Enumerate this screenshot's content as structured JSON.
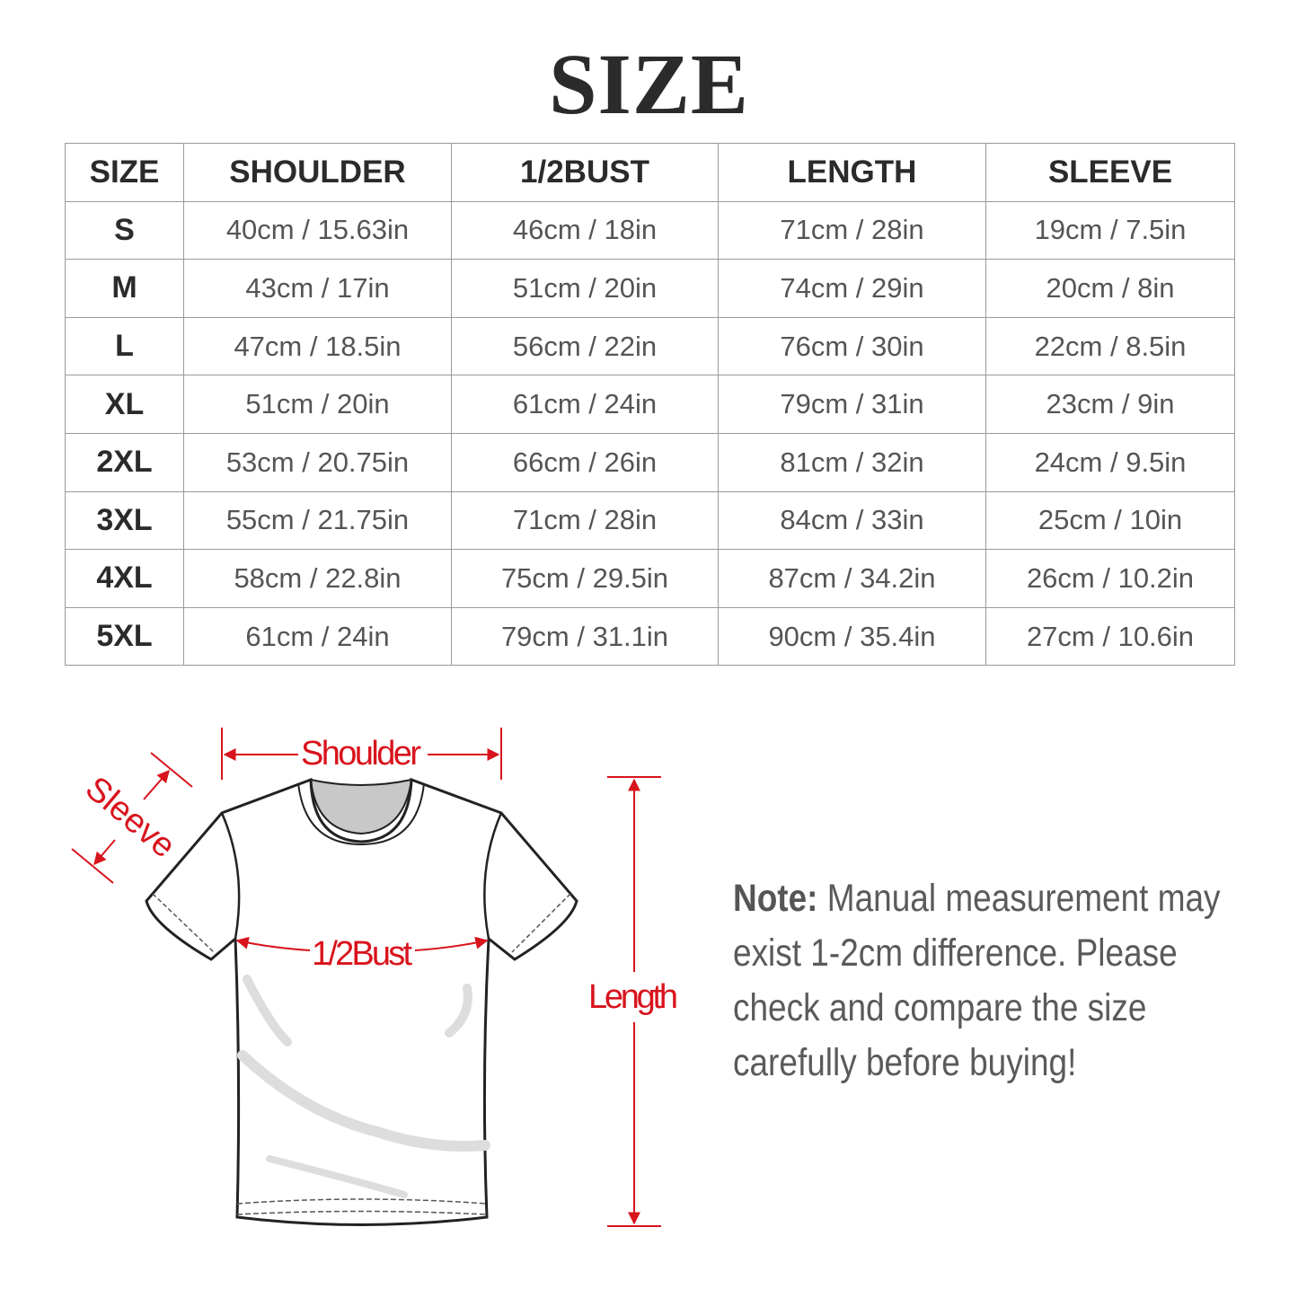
{
  "title": "SIZE",
  "table": {
    "headers": [
      "SIZE",
      "SHOULDER",
      "1/2BUST",
      "LENGTH",
      "SLEEVE"
    ],
    "rows": [
      [
        "S",
        "40cm / 15.63in",
        "46cm / 18in",
        "71cm / 28in",
        "19cm / 7.5in"
      ],
      [
        "M",
        "43cm / 17in",
        "51cm / 20in",
        "74cm / 29in",
        "20cm / 8in"
      ],
      [
        "L",
        "47cm / 18.5in",
        "56cm / 22in",
        "76cm / 30in",
        "22cm / 8.5in"
      ],
      [
        "XL",
        "51cm / 20in",
        "61cm / 24in",
        "79cm / 31in",
        "23cm / 9in"
      ],
      [
        "2XL",
        "53cm / 20.75in",
        "66cm / 26in",
        "81cm / 32in",
        "24cm / 9.5in"
      ],
      [
        "3XL",
        "55cm / 21.75in",
        "71cm / 28in",
        "84cm / 33in",
        "25cm / 10in"
      ],
      [
        "4XL",
        "58cm / 22.8in",
        "75cm / 29.5in",
        "87cm / 34.2in",
        "26cm / 10.2in"
      ],
      [
        "5XL",
        "61cm / 24in",
        "79cm / 31.1in",
        "90cm / 35.4in",
        "27cm / 10.6in"
      ]
    ]
  },
  "diagram": {
    "shoulder_label": "Shoulder",
    "sleeve_label": "Sleeve",
    "bust_label": "1/2Bust",
    "length_label": "Length",
    "accent_color": "#d8131c"
  },
  "note": {
    "prefix": "Note:",
    "text": " Manual measurement may exist 1-2cm difference. Please check and compare the size carefully before buying!"
  }
}
